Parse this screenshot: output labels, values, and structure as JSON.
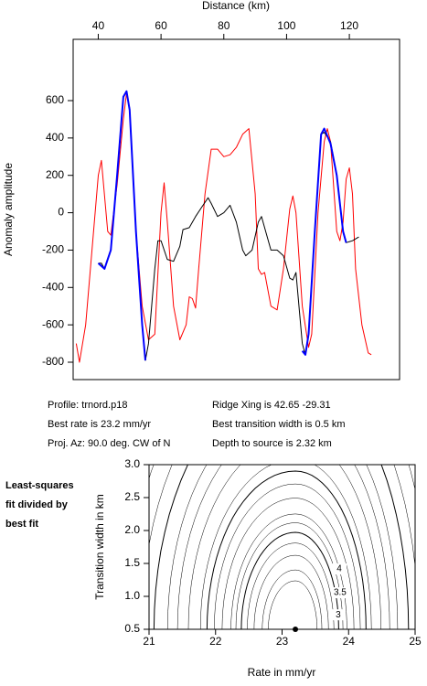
{
  "chart_data": [
    {
      "type": "line",
      "x_label": "Distance (km)",
      "y_label": "Anomaly amplitude",
      "x_axis_side": "top",
      "xlim": [
        32,
        136
      ],
      "xticks": [
        40,
        60,
        80,
        100,
        120
      ],
      "ylim": [
        -893,
        928
      ],
      "yticks": [
        600,
        400,
        200,
        0,
        -200,
        -400,
        -600,
        -800
      ],
      "series": [
        {
          "color": "#ff0000",
          "x": [
            33,
            34,
            36,
            38,
            40,
            41,
            43,
            44,
            46,
            48,
            49,
            50,
            52,
            54,
            56,
            58,
            60,
            61,
            62,
            64,
            66,
            68,
            69,
            70,
            71,
            72,
            74,
            76,
            78,
            80,
            82,
            84,
            86,
            88,
            90,
            91,
            92,
            93,
            95,
            97,
            99,
            101,
            102,
            103,
            105,
            107,
            108,
            110,
            112,
            113,
            114,
            116,
            117,
            118,
            119,
            120,
            121,
            122,
            124,
            126,
            127
          ],
          "values": [
            -700,
            -800,
            -600,
            -200,
            200,
            280,
            -100,
            -120,
            150,
            500,
            640,
            560,
            -100,
            -500,
            -680,
            -650,
            0,
            160,
            -50,
            -500,
            -680,
            -600,
            -450,
            -460,
            -510,
            -300,
            100,
            340,
            340,
            300,
            310,
            350,
            420,
            450,
            100,
            -300,
            -330,
            -320,
            -500,
            -520,
            -300,
            20,
            90,
            0,
            -500,
            -720,
            -650,
            0,
            380,
            450,
            380,
            -100,
            -150,
            -50,
            180,
            240,
            100,
            -300,
            -600,
            -750,
            -760
          ]
        },
        {
          "color": "#000000",
          "x": [
            40,
            41,
            42,
            44,
            46,
            48,
            49,
            50,
            52,
            54,
            55,
            56,
            58,
            59,
            60,
            62,
            64,
            66,
            67,
            69,
            71,
            73,
            75,
            76,
            78,
            80,
            82,
            84,
            86,
            87,
            89,
            91,
            92,
            93,
            95,
            97,
            99,
            101,
            102,
            103,
            105,
            106,
            107,
            109,
            111,
            112,
            114,
            116,
            118,
            119,
            121,
            123
          ],
          "values": [
            -270,
            -270,
            -300,
            -200,
            200,
            620,
            650,
            550,
            -100,
            -600,
            -790,
            -700,
            -300,
            -150,
            -150,
            -250,
            -260,
            -180,
            -90,
            -80,
            -20,
            30,
            80,
            50,
            -20,
            0,
            40,
            -50,
            -200,
            -230,
            -200,
            -50,
            -20,
            -80,
            -200,
            -200,
            -230,
            -350,
            -360,
            -320,
            -700,
            -760,
            -650,
            -100,
            420,
            430,
            380,
            200,
            -100,
            -160,
            -150,
            -130
          ]
        },
        {
          "color": "#0000ff",
          "x": [
            40,
            42,
            44,
            46,
            48,
            49,
            50,
            52,
            54,
            55,
            null,
            105,
            106,
            107,
            109,
            111,
            112,
            114,
            116,
            118,
            119
          ],
          "values": [
            -270,
            -300,
            -200,
            200,
            620,
            650,
            550,
            -100,
            -600,
            -790,
            null,
            -740,
            -760,
            -650,
            -100,
            420,
            450,
            370,
            200,
            -100,
            -160
          ]
        }
      ],
      "annotations": [
        "Profile: trnord.p18",
        "Ridge Xing is 42.65 -29.31",
        "Best rate is 23.2 mm/yr",
        "Best transition width is 0.5 km",
        "Proj. Az: 90.0 deg. CW of N",
        "Depth to source is   2.32 km"
      ]
    },
    {
      "type": "contour",
      "x_label": "Rate in mm/yr",
      "y_label": "Transition width in km",
      "xlim": [
        21,
        25
      ],
      "xticks": [
        21,
        22,
        23,
        24,
        25
      ],
      "ylim": [
        0.5,
        3.0
      ],
      "yticks": [
        {
          "value": 0.5,
          "label": "0.5"
        },
        {
          "value": 1.0,
          "label": "1.0"
        },
        {
          "value": 1.5,
          "label": "1.5"
        },
        {
          "value": 2.0,
          "label": "2.0"
        },
        {
          "value": 2.5,
          "label": "2.5"
        },
        {
          "value": 3.0,
          "label": "3.0"
        }
      ],
      "minimum": {
        "x": 23.2,
        "y": 0.5
      },
      "levels": [
        1.2,
        1.5,
        2,
        2.5,
        3,
        3.5,
        4,
        5,
        6,
        7,
        8,
        10,
        12,
        14,
        17,
        20,
        24,
        28,
        33,
        38,
        44,
        50,
        60,
        70,
        80,
        90,
        100,
        115,
        130,
        150
      ],
      "level_labels": [
        4,
        3.5,
        3
      ],
      "annotation_lines": [
        "Least-squares",
        "fit divided by",
        "best fit"
      ]
    }
  ]
}
